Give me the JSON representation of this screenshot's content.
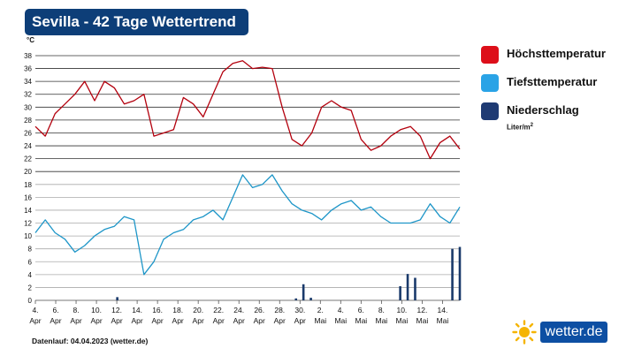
{
  "header": {
    "title": "Sevilla - 42 Tage Wettertrend"
  },
  "colors": {
    "high": "#b3000d",
    "low": "#1e96c8",
    "precip": "#1a3a6b",
    "legend_high": "#dd0f1a",
    "legend_low": "#2aa3e6",
    "legend_precip": "#1f3b73"
  },
  "legend": {
    "high": "Höchsttemperatur",
    "low": "Tiefsttemperatur",
    "precip": "Niederschlag",
    "precip_unit": "Liter/m",
    "precip_unit_sup": "2"
  },
  "footnote": "Datenlauf: 04.04.2023 (wetter.de)",
  "brand": {
    "text": "wetter.de",
    "icon": "sun-icon"
  },
  "chart_data": {
    "type": "line",
    "y_unit": "°C",
    "ylim": [
      0,
      38
    ],
    "y_ticks": [
      0,
      2,
      4,
      6,
      8,
      10,
      12,
      14,
      16,
      18,
      20,
      22,
      24,
      26,
      28,
      30,
      32,
      34,
      36,
      38
    ],
    "x_tick_labels": [
      {
        "day": "4.",
        "month": "Apr"
      },
      {
        "day": "6.",
        "month": "Apr"
      },
      {
        "day": "8.",
        "month": "Apr"
      },
      {
        "day": "10.",
        "month": "Apr"
      },
      {
        "day": "12.",
        "month": "Apr"
      },
      {
        "day": "14.",
        "month": "Apr"
      },
      {
        "day": "16.",
        "month": "Apr"
      },
      {
        "day": "18.",
        "month": "Apr"
      },
      {
        "day": "20.",
        "month": "Apr"
      },
      {
        "day": "22.",
        "month": "Apr"
      },
      {
        "day": "24.",
        "month": "Apr"
      },
      {
        "day": "26.",
        "month": "Apr"
      },
      {
        "day": "28.",
        "month": "Apr"
      },
      {
        "day": "30.",
        "month": "Apr"
      },
      {
        "day": "2.",
        "month": "Mai"
      },
      {
        "day": "4.",
        "month": "Mai"
      },
      {
        "day": "6.",
        "month": "Mai"
      },
      {
        "day": "8.",
        "month": "Mai"
      },
      {
        "day": "10.",
        "month": "Mai"
      },
      {
        "day": "12.",
        "month": "Mai"
      },
      {
        "day": "14.",
        "month": "Mai"
      }
    ],
    "series": [
      {
        "name": "Höchsttemperatur",
        "values": [
          27,
          25.5,
          29,
          30.5,
          32,
          34,
          31,
          34,
          33,
          30.5,
          31,
          32,
          25.5,
          26,
          26.5,
          31.5,
          30.5,
          28.5,
          32,
          35.5,
          36.8,
          37.2,
          36,
          36.2,
          36,
          30,
          25,
          24,
          26,
          30,
          31,
          30,
          29.5,
          25,
          23.3,
          24,
          25.5,
          26.5,
          27,
          25.5,
          22,
          24.5,
          25.5,
          23.5
        ]
      },
      {
        "name": "Tiefsttemperatur",
        "values": [
          10.5,
          12.5,
          10.5,
          9.5,
          7.5,
          8.5,
          10,
          11,
          11.5,
          13,
          12.5,
          4,
          6,
          9.5,
          10.5,
          11,
          12.5,
          13,
          14,
          12.5,
          16,
          19.5,
          17.5,
          18,
          19.5,
          17,
          15,
          14,
          13.5,
          12.5,
          14,
          15,
          15.5,
          14,
          14.5,
          13,
          12,
          12,
          12,
          12.5,
          15,
          13,
          12,
          14.5
        ]
      },
      {
        "name": "Niederschlag",
        "values": [
          0,
          0,
          0,
          0,
          0,
          0,
          0,
          0,
          0,
          0,
          0,
          0.5,
          0,
          0,
          0,
          0,
          0,
          0,
          0,
          0,
          0,
          0,
          0,
          0,
          0,
          0,
          0,
          0,
          0,
          0,
          0,
          0,
          0,
          0,
          0,
          0.3,
          2.5,
          0.4,
          0,
          0,
          0,
          0,
          0,
          0,
          0,
          0,
          0,
          0,
          0,
          2.2,
          4.1,
          3.5,
          0,
          0,
          0,
          0,
          8,
          8.3
        ]
      }
    ]
  }
}
